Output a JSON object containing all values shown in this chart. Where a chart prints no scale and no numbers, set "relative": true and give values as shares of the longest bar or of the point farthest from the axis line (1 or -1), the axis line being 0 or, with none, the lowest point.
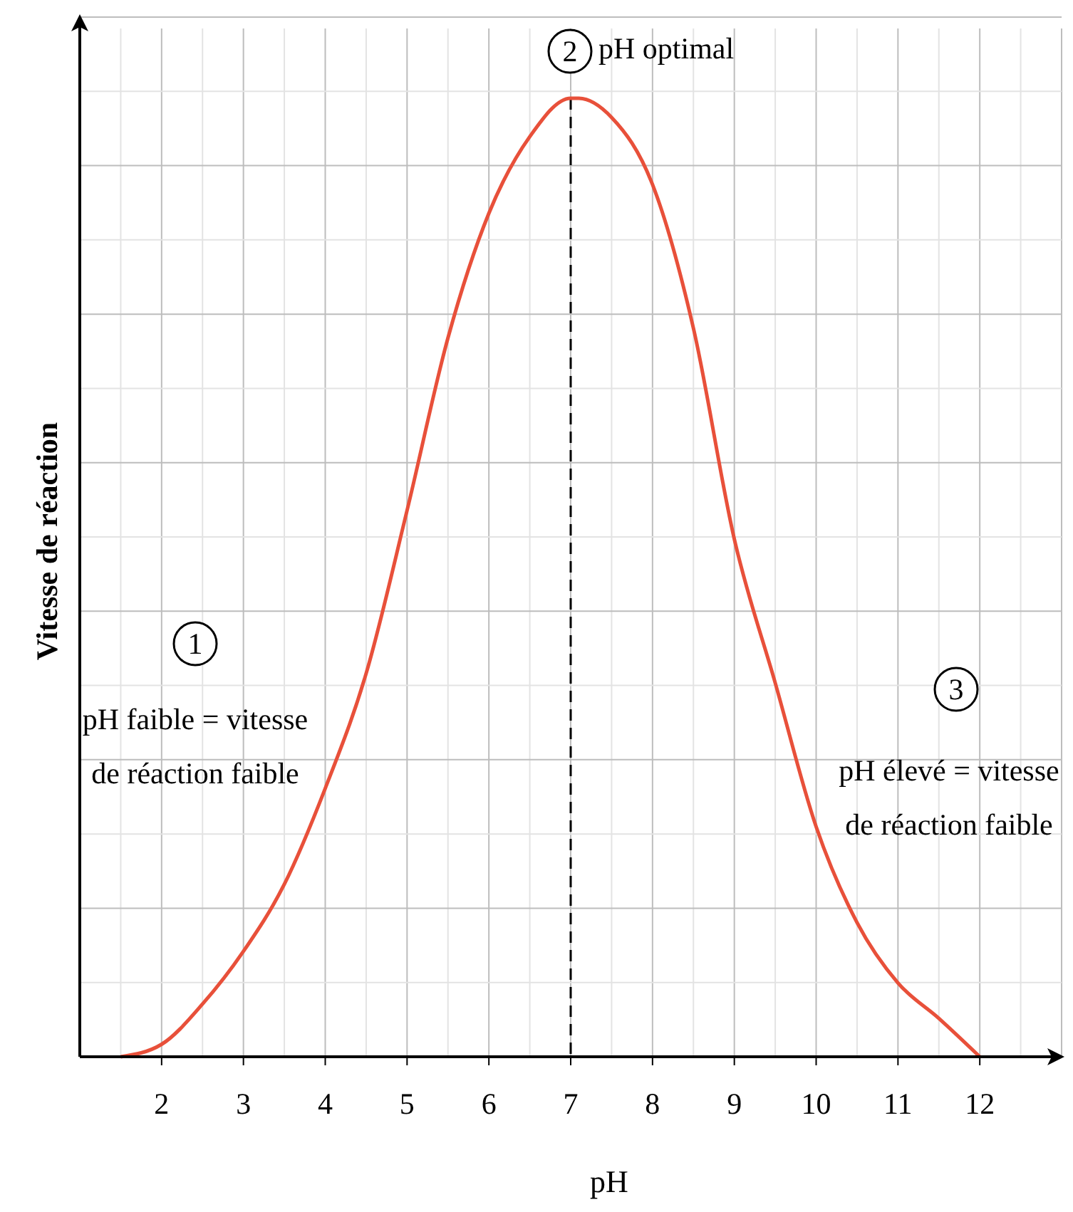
{
  "chart_data": {
    "type": "line",
    "xlabel": "pH",
    "ylabel": "Vitesse de réaction",
    "relative": true,
    "xlim": [
      1,
      13
    ],
    "xticks": [
      2,
      3,
      4,
      5,
      6,
      7,
      8,
      9,
      10,
      11,
      12
    ],
    "grid": true,
    "marker": "none",
    "line_style": "solid",
    "x": [
      1.5,
      2,
      2.5,
      3,
      3.5,
      4,
      4.5,
      5,
      5.5,
      6,
      6.5,
      7,
      7.1,
      7.5,
      8,
      8.5,
      9,
      9.5,
      10,
      10.5,
      11,
      11.5,
      12
    ],
    "series": [
      {
        "color": "#e8503a",
        "values": [
          0,
          0.013,
          0.055,
          0.11,
          0.18,
          0.28,
          0.4,
          0.57,
          0.75,
          0.88,
          0.96,
          1,
          1,
          0.98,
          0.91,
          0.76,
          0.54,
          0.39,
          0.24,
          0.14,
          0.077,
          0.04,
          0
        ]
      }
    ],
    "ref_lines": [
      {
        "axis": "x",
        "value": 7,
        "color": "#000000",
        "line_style": "dashed"
      }
    ],
    "annotations": [
      "1",
      "pH faible = vitesse\nde réaction faible",
      "2",
      "pH optimal",
      "3",
      "pH élevé = vitesse\nde réaction faible"
    ]
  }
}
